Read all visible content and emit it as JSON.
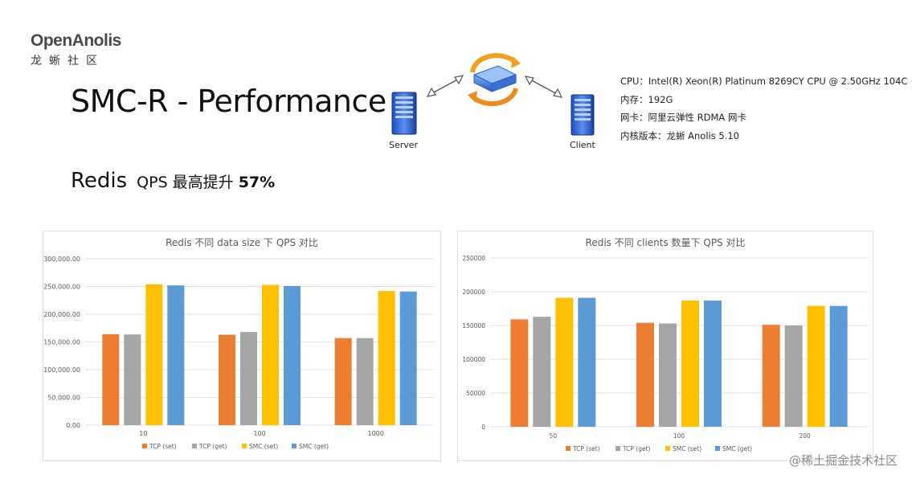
{
  "header": {
    "logo_main": "OpenAnolis",
    "logo_sub": "龙蜥社区",
    "title": "SMC-R - Performance",
    "subtitle_redis": "Redis",
    "subtitle_qps": "QPS 最高提升",
    "subtitle_pct": "57%"
  },
  "diagram": {
    "server_label": "Server",
    "client_label": "Client"
  },
  "specs": [
    "CPU：Intel(R) Xeon(R) Platinum 8269CY CPU @ 2.50GHz 104C",
    "内存：192G",
    "网卡：阿里云弹性 RDMA 网卡",
    "内核版本：龙蜥 Anolis 5.10"
  ],
  "colors": {
    "tcp_set": "#ED7D31",
    "tcp_get": "#A5A5A5",
    "smc_set": "#FFC000",
    "smc_get": "#5B9BD5"
  },
  "chart_data": [
    {
      "type": "bar",
      "title": "Redis 不同 data size 下 QPS 对比",
      "categories": [
        "10",
        "100",
        "1000"
      ],
      "ylim": [
        0,
        300000
      ],
      "yticks": [
        "0.00",
        "50,000.00",
        "100,000.00",
        "150,000.00",
        "200,000.00",
        "250,000.00",
        "300,000.00"
      ],
      "grid": true,
      "legend": "bottom",
      "series": [
        {
          "name": "TCP (set)",
          "color": "#ED7D31",
          "values": [
            164000,
            163000,
            157000
          ]
        },
        {
          "name": "TCP (get)",
          "color": "#A5A5A5",
          "values": [
            163500,
            168000,
            157000
          ]
        },
        {
          "name": "SMC (set)",
          "color": "#FFC000",
          "values": [
            254000,
            253000,
            242000
          ]
        },
        {
          "name": "SMC (get)",
          "color": "#5B9BD5",
          "values": [
            252000,
            251000,
            241000
          ]
        }
      ]
    },
    {
      "type": "bar",
      "title": "Redis 不同 clients 数量下 QPS 对比",
      "categories": [
        "50",
        "100",
        "200"
      ],
      "ylim": [
        0,
        250000
      ],
      "yticks": [
        "0",
        "50000",
        "100000",
        "150000",
        "200000",
        "250000"
      ],
      "grid": true,
      "legend": "bottom",
      "series": [
        {
          "name": "TCP (set)",
          "color": "#ED7D31",
          "values": [
            159000,
            154000,
            151000
          ]
        },
        {
          "name": "TCP (get)",
          "color": "#A5A5A5",
          "values": [
            163000,
            153000,
            150000
          ]
        },
        {
          "name": "SMC (set)",
          "color": "#FFC000",
          "values": [
            191000,
            187000,
            179000
          ]
        },
        {
          "name": "SMC (get)",
          "color": "#5B9BD5",
          "values": [
            191000,
            187000,
            179000
          ]
        }
      ]
    }
  ],
  "watermark": "@稀土掘金技术社区"
}
